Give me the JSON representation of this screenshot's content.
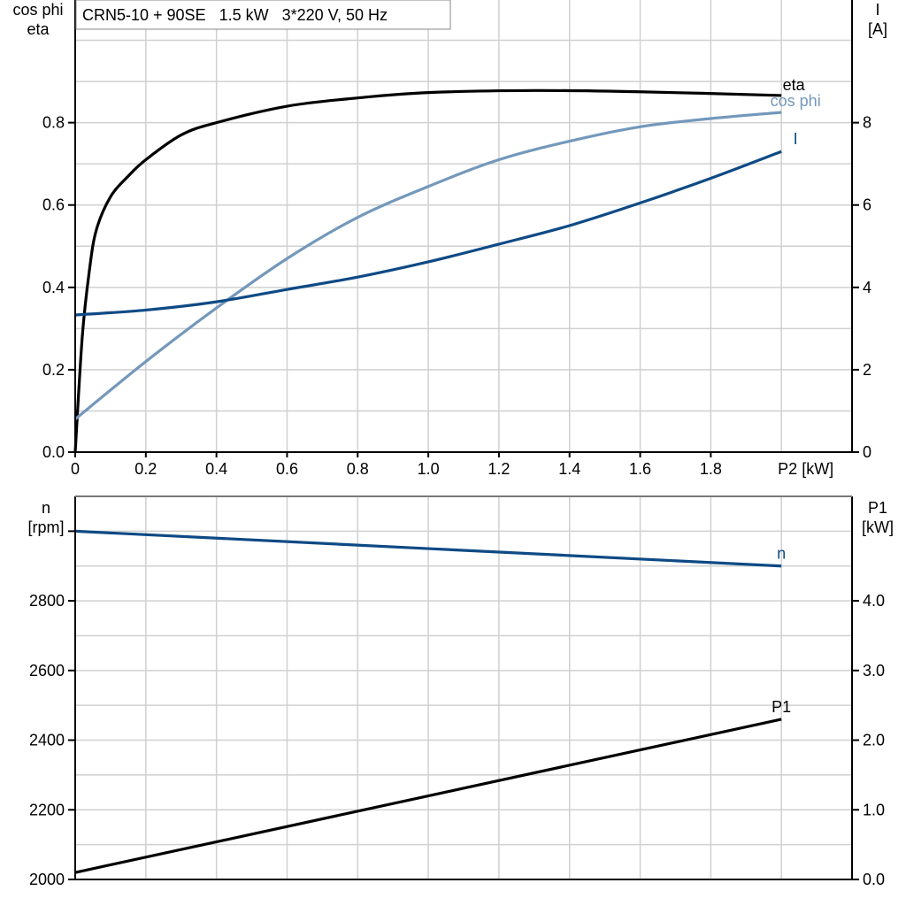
{
  "title": "CRN5-10 + 90SE   1.5 kW   3*220 V, 50 Hz",
  "chart_data": [
    {
      "type": "line",
      "ylabel_left": [
        "cos phi",
        "eta"
      ],
      "ylabel_right": [
        "I",
        "[A]"
      ],
      "xlabel": "P2 [kW]",
      "xlim": [
        0,
        2.2
      ],
      "ylim_left": [
        0,
        1.1
      ],
      "ylim_right": [
        0,
        11
      ],
      "x_ticks": [
        "0",
        "0.2",
        "0.4",
        "0.6",
        "0.8",
        "1.0",
        "1.2",
        "1.4",
        "1.6",
        "1.8"
      ],
      "x_tick_values": [
        0,
        0.2,
        0.4,
        0.6,
        0.8,
        1.0,
        1.2,
        1.4,
        1.6,
        1.8
      ],
      "y_left_ticks": [
        "0.0",
        "0.2",
        "0.4",
        "0.6",
        "0.8"
      ],
      "y_left_tick_values": [
        0,
        0.2,
        0.4,
        0.6,
        0.8
      ],
      "y_right_ticks": [
        "0",
        "2",
        "4",
        "6",
        "8"
      ],
      "y_right_tick_values": [
        0,
        2,
        4,
        6,
        8
      ],
      "grid": true,
      "series": [
        {
          "name": "eta",
          "axis": "left",
          "color": "#000000",
          "x": [
            0,
            0.02,
            0.04,
            0.06,
            0.1,
            0.15,
            0.2,
            0.3,
            0.4,
            0.6,
            0.8,
            1.0,
            1.3,
            1.6,
            2.0
          ],
          "y": [
            0,
            0.28,
            0.44,
            0.54,
            0.62,
            0.67,
            0.71,
            0.77,
            0.8,
            0.84,
            0.86,
            0.873,
            0.878,
            0.875,
            0.866
          ]
        },
        {
          "name": "cos phi",
          "axis": "left",
          "color": "#7398bb",
          "x": [
            0,
            0.2,
            0.4,
            0.6,
            0.8,
            1.0,
            1.2,
            1.4,
            1.6,
            1.8,
            2.0
          ],
          "y": [
            0.08,
            0.22,
            0.35,
            0.47,
            0.57,
            0.645,
            0.71,
            0.755,
            0.79,
            0.81,
            0.825
          ]
        },
        {
          "name": "I",
          "axis": "right",
          "color": "#0e4a85",
          "x": [
            0,
            0.2,
            0.4,
            0.6,
            0.8,
            1.0,
            1.2,
            1.4,
            1.6,
            1.8,
            2.0
          ],
          "y": [
            3.33,
            3.45,
            3.65,
            3.95,
            4.25,
            4.62,
            5.05,
            5.5,
            6.05,
            6.65,
            7.3
          ]
        }
      ]
    },
    {
      "type": "line",
      "ylabel_left": [
        "n",
        "[rpm]"
      ],
      "ylabel_right": [
        "P1",
        "[kW]"
      ],
      "xlim": [
        0,
        2.2
      ],
      "ylim_left": [
        2000,
        3100
      ],
      "ylim_right": [
        0,
        5.5
      ],
      "y_left_ticks": [
        "2000",
        "2200",
        "2400",
        "2600",
        "2800"
      ],
      "y_left_tick_values": [
        2000,
        2200,
        2400,
        2600,
        2800
      ],
      "y_right_ticks": [
        "0.0",
        "1.0",
        "2.0",
        "3.0",
        "4.0"
      ],
      "y_right_tick_values": [
        0,
        1,
        2,
        3,
        4
      ],
      "grid": true,
      "series": [
        {
          "name": "n",
          "axis": "left",
          "color": "#0e4a85",
          "x": [
            0,
            2.0
          ],
          "y": [
            3000,
            2900
          ]
        },
        {
          "name": "P1",
          "axis": "right",
          "color": "#000000",
          "x": [
            0,
            2.0
          ],
          "y": [
            0.1,
            2.3
          ]
        }
      ]
    }
  ]
}
